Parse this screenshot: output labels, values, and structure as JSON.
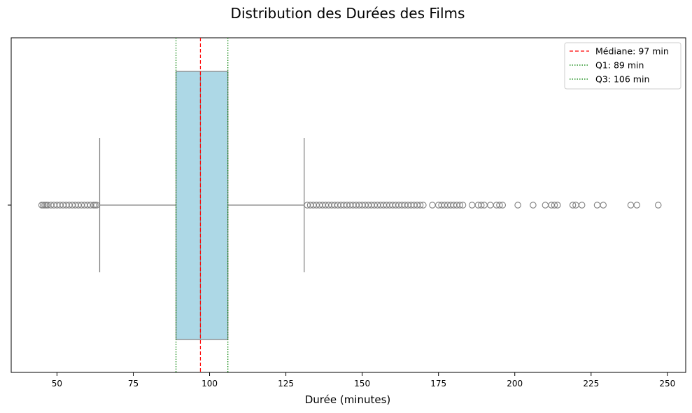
{
  "chart_data": {
    "type": "box",
    "title": "Distribution des Durées des Films",
    "xlabel": "Durée (minutes)",
    "ylabel": "",
    "xlim": [
      35,
      256
    ],
    "xticks": [
      50,
      75,
      100,
      125,
      150,
      175,
      200,
      225,
      250
    ],
    "orientation": "horizontal",
    "box": {
      "q1": 89,
      "median": 97,
      "q3": 106,
      "whisker_low": 64,
      "whisker_high": 131,
      "fill_color": "#add8e6",
      "line_color": "#7f7f7f"
    },
    "outliers": [
      45,
      45.5,
      46,
      46.5,
      47,
      48,
      49,
      50,
      51,
      52,
      53,
      54,
      55,
      56,
      57,
      58,
      59,
      60,
      61,
      62,
      62.5,
      63,
      132,
      133,
      134,
      135,
      136,
      137,
      138,
      139,
      140,
      141,
      142,
      143,
      144,
      145,
      146,
      147,
      148,
      149,
      150,
      151,
      152,
      153,
      154,
      155,
      156,
      157,
      158,
      159,
      160,
      161,
      162,
      163,
      164,
      165,
      166,
      167,
      168,
      169,
      170,
      173,
      175,
      176,
      177,
      178,
      179,
      180,
      181,
      182,
      183,
      186,
      188,
      189,
      190,
      192,
      194,
      195,
      196,
      201,
      206,
      210,
      212,
      213,
      214,
      219,
      220,
      222,
      227,
      229,
      238,
      240,
      247
    ],
    "reference_lines": [
      {
        "name": "Médiane: 97 min",
        "value": 97,
        "color": "#ff0000",
        "style": "dashed"
      },
      {
        "name": "Q1: 89 min",
        "value": 89,
        "color": "#008000",
        "style": "dotted"
      },
      {
        "name": "Q3: 106 min",
        "value": 106,
        "color": "#008000",
        "style": "dotted"
      }
    ],
    "legend_position": "top-right",
    "grid": false
  }
}
